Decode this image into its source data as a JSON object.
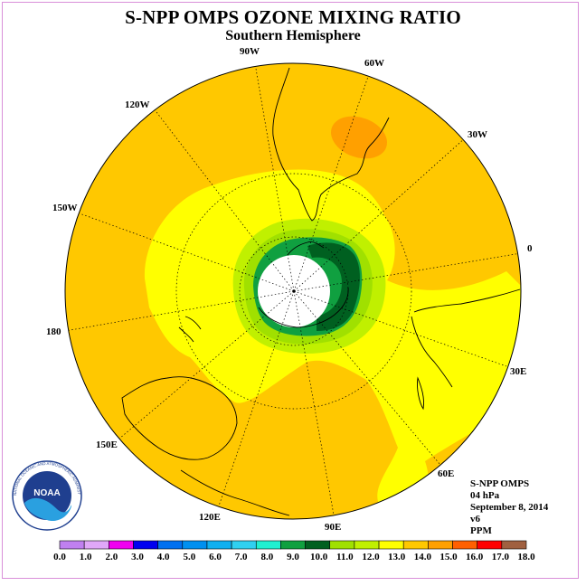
{
  "title": "S-NPP OMPS OZONE MIXING RATIO",
  "subtitle": "Southern Hemisphere",
  "longitude_labels": [
    "90W",
    "60W",
    "30W",
    "0",
    "30E",
    "60E",
    "90E",
    "120E",
    "150E",
    "180",
    "150W",
    "120W"
  ],
  "info": {
    "instrument": "S-NPP OMPS",
    "pressure": "04 hPa",
    "date": "September 8, 2014",
    "version": "v6",
    "unit": "PPM"
  },
  "logo": {
    "name": "NOAA",
    "ring_text": "NATIONAL OCEANIC AND ATMOSPHERIC ADMINISTRATION · U.S. DEPARTMENT OF COMMERCE"
  },
  "colorbar": {
    "labels": [
      "0.0",
      "1.0",
      "2.0",
      "3.0",
      "4.0",
      "5.0",
      "6.0",
      "7.0",
      "8.0",
      "9.0",
      "10.0",
      "11.0",
      "12.0",
      "13.0",
      "14.0",
      "15.0",
      "16.0",
      "17.0",
      "18.0"
    ],
    "colors": [
      "#c080f0",
      "#e0a8f8",
      "#f000f0",
      "#0000f0",
      "#0070f0",
      "#0090f0",
      "#10b0f0",
      "#30d0f0",
      "#20f0d0",
      "#10a040",
      "#006020",
      "#a0e000",
      "#c0f000",
      "#ffff00",
      "#ffc800",
      "#ffa000",
      "#ff6000",
      "#ff0000",
      "#a06040"
    ]
  }
}
